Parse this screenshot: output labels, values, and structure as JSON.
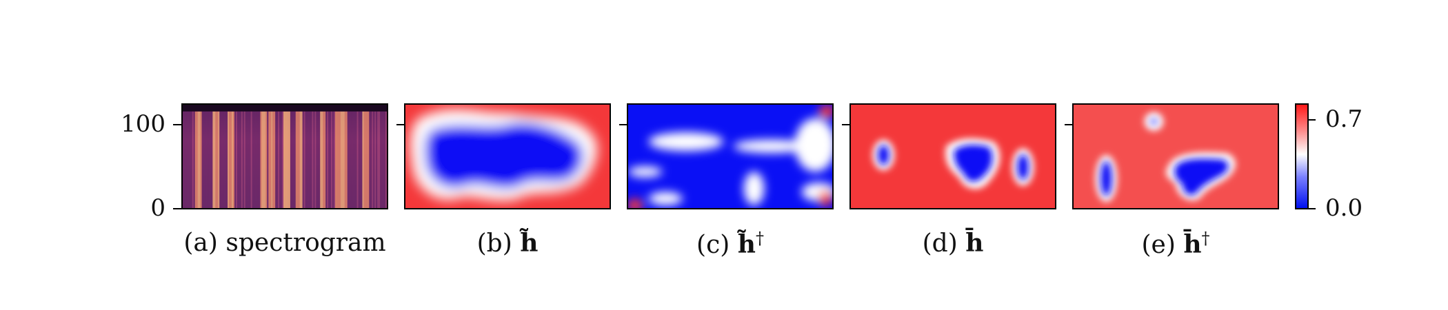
{
  "chart_data": {
    "type": "heatmap",
    "spectrogram_yaxis": {
      "ylim": [
        0,
        128
      ],
      "ticks": [
        {
          "value": 0,
          "label": "0"
        },
        {
          "value": 100,
          "label": "100"
        }
      ]
    },
    "colorbar": {
      "colormap": "bwr",
      "range": [
        0.0,
        0.75
      ],
      "ticks": [
        {
          "value": 0.0,
          "label": "0.0"
        },
        {
          "value": 0.7,
          "label": "0.7"
        }
      ]
    },
    "panels": [
      {
        "id": "a",
        "caption_prefix": "(a)",
        "caption_text": "spectrogram",
        "caption_symbol": "",
        "caption_sup": ""
      },
      {
        "id": "b",
        "caption_prefix": "(b)",
        "caption_text": "",
        "caption_symbol": "h̃",
        "caption_sup": ""
      },
      {
        "id": "c",
        "caption_prefix": "(c)",
        "caption_text": "",
        "caption_symbol": "h̃",
        "caption_sup": "†"
      },
      {
        "id": "d",
        "caption_prefix": "(d)",
        "caption_text": "",
        "caption_symbol": "h̄",
        "caption_sup": ""
      },
      {
        "id": "e",
        "caption_prefix": "(e)",
        "caption_text": "",
        "caption_symbol": "h̄",
        "caption_sup": "†"
      }
    ]
  },
  "colors": {
    "red": "#f4383a",
    "blue": "#0a10f5",
    "white": "#ffffff",
    "spectro_dark": "#2a1040",
    "spectro_mid": "#7a2a70",
    "spectro_bright": "#f2a070",
    "spectro_peak": "#fbe3b4"
  }
}
